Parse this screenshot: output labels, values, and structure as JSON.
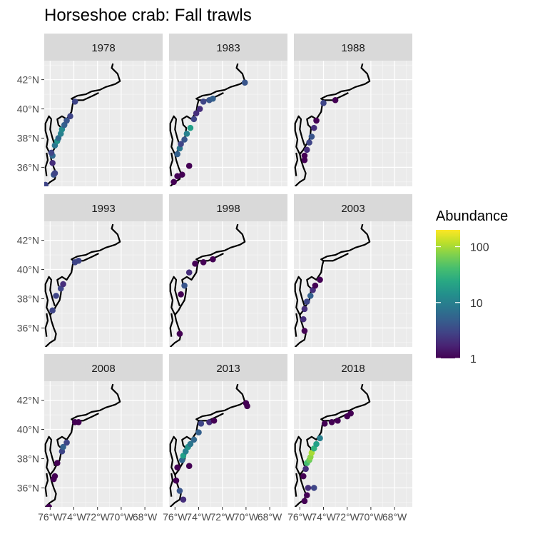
{
  "chart_data": {
    "type": "scatter",
    "title": "Horseshoe crab: Fall trawls",
    "xlabel": "",
    "ylabel": "",
    "facets": [
      "1978",
      "1983",
      "1988",
      "1993",
      "1998",
      "2003",
      "2008",
      "2013",
      "2018"
    ],
    "x_ticks": [
      "76°W",
      "74°W",
      "72°W",
      "70°W",
      "68°W"
    ],
    "x_tick_values": [
      -76,
      -74,
      -72,
      -70,
      -68
    ],
    "y_ticks": [
      "36°N",
      "38°N",
      "40°N",
      "42°N"
    ],
    "y_tick_values": [
      36,
      38,
      40,
      42
    ],
    "xlim": [
      -76.5,
      -66.5
    ],
    "ylim": [
      34.7,
      43.3
    ],
    "grid": true,
    "legend": {
      "title": "Abundance",
      "position": "right",
      "scale": "log",
      "range": [
        1,
        200
      ],
      "breaks": [
        1,
        10,
        100
      ],
      "break_labels": [
        "1",
        "10",
        "100"
      ]
    },
    "colors": {
      "panel_bg": "#EBEBEB",
      "strip_bg": "#D9D9D9",
      "grid": "#FFFFFF",
      "coast": "#000000"
    },
    "panels": [
      {
        "year": "1978",
        "points": [
          [
            -76.4,
            34.8,
            3
          ],
          [
            -75.7,
            35.5,
            4
          ],
          [
            -75.6,
            35.6,
            3
          ],
          [
            -75.8,
            36.3,
            2
          ],
          [
            -75.8,
            36.8,
            6
          ],
          [
            -75.9,
            37.0,
            3
          ],
          [
            -75.6,
            37.5,
            8
          ],
          [
            -75.4,
            37.8,
            15
          ],
          [
            -75.3,
            38.0,
            6
          ],
          [
            -75.1,
            38.3,
            10
          ],
          [
            -75.0,
            38.6,
            12
          ],
          [
            -74.8,
            38.9,
            5
          ],
          [
            -74.6,
            39.2,
            4
          ],
          [
            -74.3,
            39.5,
            3
          ],
          [
            -73.9,
            40.5,
            3
          ]
        ]
      },
      {
        "year": "1983",
        "points": [
          [
            -76.1,
            35.0,
            1
          ],
          [
            -75.8,
            35.4,
            1
          ],
          [
            -75.4,
            35.5,
            1
          ],
          [
            -74.8,
            36.1,
            1
          ],
          [
            -75.8,
            36.9,
            5
          ],
          [
            -75.6,
            37.3,
            8
          ],
          [
            -75.5,
            37.6,
            3
          ],
          [
            -75.2,
            37.9,
            4
          ],
          [
            -75.0,
            38.3,
            10
          ],
          [
            -74.7,
            38.7,
            20
          ],
          [
            -74.4,
            39.3,
            3
          ],
          [
            -74.2,
            39.7,
            2
          ],
          [
            -73.9,
            40.0,
            2
          ],
          [
            -73.6,
            40.5,
            3
          ],
          [
            -73.1,
            40.6,
            4
          ],
          [
            -72.8,
            40.7,
            5
          ],
          [
            -70.1,
            41.8,
            4
          ]
        ]
      },
      {
        "year": "1988",
        "points": [
          [
            -75.6,
            36.5,
            1
          ],
          [
            -75.6,
            36.8,
            1
          ],
          [
            -75.4,
            37.2,
            2
          ],
          [
            -75.2,
            37.7,
            3
          ],
          [
            -75.0,
            38.1,
            4
          ],
          [
            -74.8,
            38.7,
            2
          ],
          [
            -74.6,
            39.2,
            1
          ],
          [
            -74.0,
            40.4,
            3
          ],
          [
            -73.0,
            40.6,
            1
          ]
        ]
      },
      {
        "year": "1993",
        "points": [
          [
            -75.8,
            37.2,
            3
          ],
          [
            -75.5,
            38.2,
            3
          ],
          [
            -75.1,
            38.7,
            3
          ],
          [
            -74.9,
            39.0,
            2
          ],
          [
            -73.9,
            40.5,
            3
          ],
          [
            -73.6,
            40.6,
            3
          ]
        ]
      },
      {
        "year": "1998",
        "points": [
          [
            -75.6,
            35.6,
            1
          ],
          [
            -75.5,
            38.3,
            1
          ],
          [
            -75.2,
            38.9,
            4
          ],
          [
            -74.8,
            39.8,
            2
          ],
          [
            -74.3,
            40.4,
            1
          ],
          [
            -73.6,
            40.5,
            1
          ],
          [
            -72.8,
            40.7,
            1
          ]
        ]
      },
      {
        "year": "2003",
        "points": [
          [
            -75.6,
            35.8,
            1
          ],
          [
            -75.7,
            36.6,
            2
          ],
          [
            -75.6,
            37.3,
            2
          ],
          [
            -75.4,
            37.8,
            3
          ],
          [
            -75.1,
            38.2,
            5
          ],
          [
            -74.9,
            38.6,
            2
          ],
          [
            -74.7,
            38.9,
            1
          ],
          [
            -74.3,
            39.3,
            1
          ]
        ]
      },
      {
        "year": "2008",
        "points": [
          [
            -76.1,
            34.7,
            1
          ],
          [
            -75.7,
            36.6,
            1
          ],
          [
            -75.6,
            36.8,
            1
          ],
          [
            -75.4,
            37.7,
            1
          ],
          [
            -75.0,
            38.5,
            3
          ],
          [
            -74.9,
            38.8,
            5
          ],
          [
            -74.6,
            39.1,
            3
          ],
          [
            -73.9,
            40.5,
            1
          ],
          [
            -73.6,
            40.5,
            1
          ]
        ]
      },
      {
        "year": "2013",
        "points": [
          [
            -75.3,
            35.2,
            2
          ],
          [
            -75.6,
            35.8,
            4
          ],
          [
            -75.9,
            36.5,
            1
          ],
          [
            -74.8,
            37.5,
            1
          ],
          [
            -75.8,
            37.4,
            1
          ],
          [
            -75.4,
            37.9,
            6
          ],
          [
            -75.3,
            38.2,
            20
          ],
          [
            -75.1,
            38.5,
            10
          ],
          [
            -74.9,
            38.8,
            15
          ],
          [
            -74.7,
            39.0,
            8
          ],
          [
            -74.4,
            39.3,
            6
          ],
          [
            -74.0,
            39.8,
            5
          ],
          [
            -73.8,
            40.4,
            3
          ],
          [
            -73.1,
            40.5,
            2
          ],
          [
            -72.7,
            40.6,
            1
          ],
          [
            -70.0,
            41.8,
            1
          ],
          [
            -69.9,
            41.6,
            1
          ]
        ]
      },
      {
        "year": "2018",
        "points": [
          [
            -75.6,
            35.1,
            1
          ],
          [
            -75.4,
            35.5,
            1
          ],
          [
            -75.3,
            36.0,
            2
          ],
          [
            -74.8,
            36.0,
            3
          ],
          [
            -75.7,
            36.8,
            1
          ],
          [
            -75.5,
            37.3,
            2
          ],
          [
            -75.4,
            37.7,
            40
          ],
          [
            -75.2,
            37.9,
            60
          ],
          [
            -75.1,
            38.1,
            80
          ],
          [
            -75.0,
            38.4,
            100
          ],
          [
            -74.8,
            38.7,
            30
          ],
          [
            -74.6,
            39.0,
            20
          ],
          [
            -74.3,
            39.4,
            10
          ],
          [
            -73.9,
            40.4,
            1
          ],
          [
            -73.3,
            40.5,
            1
          ],
          [
            -72.8,
            40.6,
            1
          ],
          [
            -72.0,
            40.9,
            1
          ],
          [
            -71.7,
            41.1,
            1
          ]
        ]
      }
    ]
  }
}
